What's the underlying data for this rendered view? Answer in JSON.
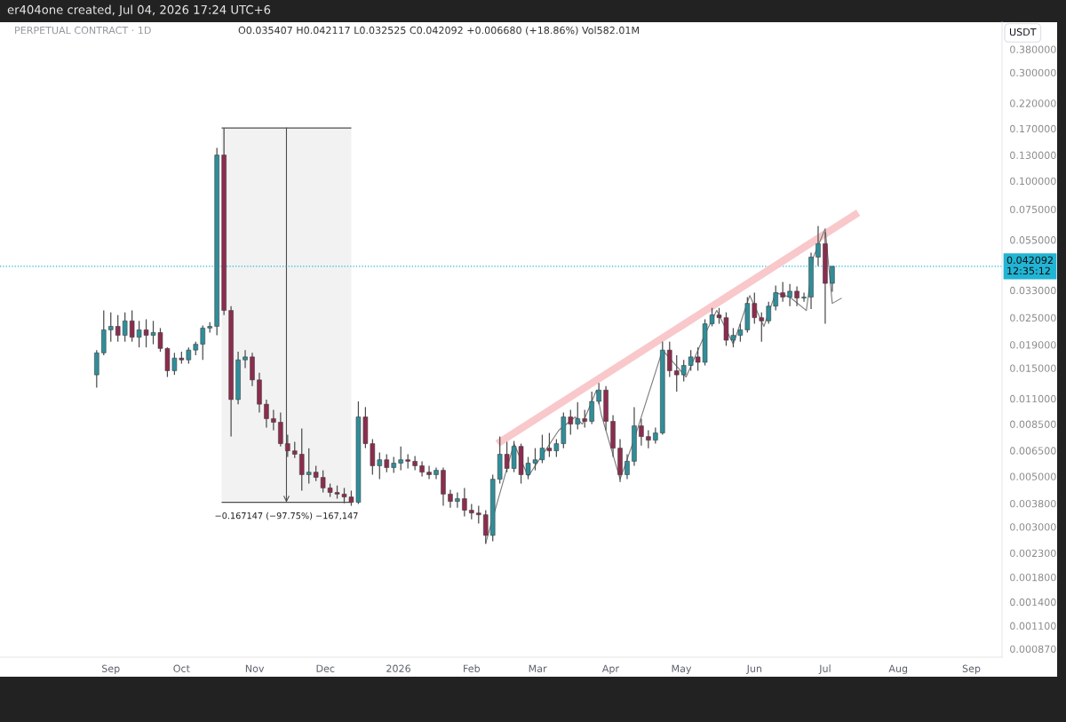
{
  "chart_data": {
    "type": "candlestick",
    "title": "PERPETUAL CONTRACT · 1D",
    "subtitle": "O0.035407 H0.042117 L0.032525 C0.042092 +0.006680 (+18.86%) Vol582.01M",
    "ylabel": "USDT",
    "annotations": [
      "er404one created, Jul 04, 2026 17:24 UTC+6"
    ],
    "x": [
      "2025-08-26",
      "2025-08-29",
      "2025-09-01",
      "2025-09-04",
      "2025-09-07",
      "2025-09-10",
      "2025-09-13",
      "2025-09-16",
      "2025-09-19",
      "2025-09-22",
      "2025-09-25",
      "2025-09-28",
      "2025-10-01",
      "2025-10-04",
      "2025-10-07",
      "2025-10-10",
      "2025-10-13",
      "2025-10-16",
      "2025-10-19",
      "2025-10-22",
      "2025-10-25",
      "2025-10-28",
      "2025-10-31",
      "2025-11-03",
      "2025-11-06",
      "2025-11-09",
      "2025-11-12",
      "2025-11-15",
      "2025-11-18",
      "2025-11-21",
      "2025-11-24",
      "2025-11-27",
      "2025-11-30",
      "2025-12-03",
      "2025-12-06",
      "2025-12-09",
      "2025-12-12",
      "2025-12-15",
      "2025-12-18",
      "2025-12-21",
      "2025-12-24",
      "2025-12-27",
      "2025-12-30",
      "2026-01-02",
      "2026-01-05",
      "2026-01-08",
      "2026-01-11",
      "2026-01-14",
      "2026-01-17",
      "2026-01-20",
      "2026-01-23",
      "2026-01-26",
      "2026-01-29",
      "2026-02-01",
      "2026-02-04",
      "2026-02-07",
      "2026-02-10",
      "2026-02-13",
      "2026-02-16",
      "2026-02-19",
      "2026-02-22",
      "2026-02-25",
      "2026-02-28",
      "2026-03-03",
      "2026-03-06",
      "2026-03-09",
      "2026-03-12",
      "2026-03-15",
      "2026-03-18",
      "2026-03-21",
      "2026-03-24",
      "2026-03-27",
      "2026-03-30",
      "2026-04-02",
      "2026-04-05",
      "2026-04-08",
      "2026-04-11",
      "2026-04-14",
      "2026-04-17",
      "2026-04-20",
      "2026-04-23",
      "2026-04-26",
      "2026-04-29",
      "2026-05-02",
      "2026-05-05",
      "2026-05-08",
      "2026-05-11",
      "2026-05-14",
      "2026-05-17",
      "2026-05-20",
      "2026-05-23",
      "2026-05-26",
      "2026-05-29",
      "2026-06-01",
      "2026-06-04",
      "2026-06-07",
      "2026-06-10",
      "2026-06-13",
      "2026-06-16",
      "2026-06-19",
      "2026-06-22",
      "2026-06-25",
      "2026-06-28",
      "2026-07-01",
      "2026-07-04"
    ],
    "ohlc": [
      [
        0.014,
        0.018,
        0.0123,
        0.0175
      ],
      [
        0.0175,
        0.0269,
        0.0171,
        0.0221
      ],
      [
        0.0221,
        0.0264,
        0.0196,
        0.0229
      ],
      [
        0.0229,
        0.0257,
        0.0196,
        0.0209
      ],
      [
        0.0209,
        0.0264,
        0.0196,
        0.0242
      ],
      [
        0.0242,
        0.0269,
        0.0196,
        0.0205
      ],
      [
        0.0205,
        0.0242,
        0.0185,
        0.0221
      ],
      [
        0.0221,
        0.0246,
        0.0185,
        0.0209
      ],
      [
        0.0209,
        0.0242,
        0.0191,
        0.0215
      ],
      [
        0.0215,
        0.0225,
        0.0177,
        0.0183
      ],
      [
        0.0183,
        0.0185,
        0.0137,
        0.0146
      ],
      [
        0.0146,
        0.0175,
        0.014,
        0.0166
      ],
      [
        0.0166,
        0.0177,
        0.0157,
        0.0163
      ],
      [
        0.0163,
        0.0185,
        0.0157,
        0.018
      ],
      [
        0.018,
        0.0196,
        0.0171,
        0.0191
      ],
      [
        0.0191,
        0.0231,
        0.0163,
        0.0225
      ],
      [
        0.0225,
        0.0239,
        0.0215,
        0.0229
      ],
      [
        0.0229,
        0.14,
        0.0209,
        0.13
      ],
      [
        0.13,
        0.17099,
        0.0257,
        0.0269
      ],
      [
        0.0269,
        0.0281,
        0.00749,
        0.0109
      ],
      [
        0.0109,
        0.0177,
        0.0104,
        0.0163
      ],
      [
        0.0163,
        0.018,
        0.015,
        0.0168
      ],
      [
        0.0168,
        0.0175,
        0.0125,
        0.0133
      ],
      [
        0.0133,
        0.0143,
        0.00956,
        0.0104
      ],
      [
        0.0104,
        0.0109,
        0.0082,
        0.00898
      ],
      [
        0.00898,
        0.00982,
        0.00798,
        0.00866
      ],
      [
        0.00866,
        0.00956,
        0.00678,
        0.00697
      ],
      [
        0.00697,
        0.00763,
        0.00609,
        0.00648
      ],
      [
        0.00648,
        0.0071,
        0.00603,
        0.00626
      ],
      [
        0.00626,
        0.00812,
        0.00433,
        0.00509
      ],
      [
        0.00509,
        0.00666,
        0.00465,
        0.00522
      ],
      [
        0.00522,
        0.00557,
        0.00477,
        0.00495
      ],
      [
        0.00495,
        0.00532,
        0.00425,
        0.00445
      ],
      [
        0.00445,
        0.00465,
        0.00406,
        0.00425
      ],
      [
        0.00425,
        0.00456,
        0.00399,
        0.00418
      ],
      [
        0.00418,
        0.00445,
        0.00381,
        0.00406
      ],
      [
        0.00406,
        0.00433,
        0.00371,
        0.003844
      ],
      [
        0.003844,
        0.0107,
        0.00378,
        0.00914
      ],
      [
        0.00914,
        0.0101,
        0.00666,
        0.00697
      ],
      [
        0.00697,
        0.00729,
        0.00509,
        0.00557
      ],
      [
        0.00557,
        0.00637,
        0.00486,
        0.00592
      ],
      [
        0.00592,
        0.00626,
        0.00522,
        0.00547
      ],
      [
        0.00547,
        0.00609,
        0.00518,
        0.00572
      ],
      [
        0.00572,
        0.00678,
        0.00532,
        0.00592
      ],
      [
        0.00592,
        0.00626,
        0.00542,
        0.00583
      ],
      [
        0.00583,
        0.00615,
        0.00532,
        0.00557
      ],
      [
        0.00557,
        0.00583,
        0.005,
        0.00522
      ],
      [
        0.00522,
        0.00557,
        0.00486,
        0.00509
      ],
      [
        0.00509,
        0.00547,
        0.00486,
        0.00532
      ],
      [
        0.00532,
        0.00547,
        0.00371,
        0.00418
      ],
      [
        0.00418,
        0.00437,
        0.00364,
        0.00388
      ],
      [
        0.00388,
        0.00425,
        0.00364,
        0.00399
      ],
      [
        0.00399,
        0.00445,
        0.00333,
        0.00355
      ],
      [
        0.00355,
        0.00378,
        0.00324,
        0.00345
      ],
      [
        0.00345,
        0.00371,
        0.0031,
        0.00339
      ],
      [
        0.00339,
        0.00355,
        0.00252,
        0.00275
      ],
      [
        0.00275,
        0.00509,
        0.00259,
        0.00486
      ],
      [
        0.00486,
        0.00749,
        0.00465,
        0.00626
      ],
      [
        0.00626,
        0.0071,
        0.00522,
        0.00542
      ],
      [
        0.00542,
        0.00716,
        0.00522,
        0.00678
      ],
      [
        0.00678,
        0.00697,
        0.00465,
        0.00509
      ],
      [
        0.00509,
        0.00609,
        0.00486,
        0.00572
      ],
      [
        0.00572,
        0.00666,
        0.00532,
        0.00592
      ],
      [
        0.00592,
        0.00763,
        0.00572,
        0.00666
      ],
      [
        0.00666,
        0.00777,
        0.00609,
        0.00648
      ],
      [
        0.00648,
        0.00729,
        0.00609,
        0.00697
      ],
      [
        0.00697,
        0.00956,
        0.00666,
        0.00914
      ],
      [
        0.00914,
        0.00982,
        0.00763,
        0.0085
      ],
      [
        0.0085,
        0.0106,
        0.00806,
        0.00898
      ],
      [
        0.00898,
        0.00982,
        0.0082,
        0.00874
      ],
      [
        0.00874,
        0.0118,
        0.0085,
        0.0107
      ],
      [
        0.0107,
        0.0129,
        0.0104,
        0.012
      ],
      [
        0.012,
        0.0125,
        0.00798,
        0.00874
      ],
      [
        0.00874,
        0.0093,
        0.00609,
        0.00666
      ],
      [
        0.00666,
        0.00729,
        0.00473,
        0.00509
      ],
      [
        0.00509,
        0.00626,
        0.00486,
        0.00583
      ],
      [
        0.00583,
        0.0101,
        0.00557,
        0.00835
      ],
      [
        0.00835,
        0.00898,
        0.00684,
        0.00749
      ],
      [
        0.00749,
        0.00798,
        0.00666,
        0.00722
      ],
      [
        0.00722,
        0.0082,
        0.00697,
        0.00777
      ],
      [
        0.00777,
        0.0196,
        0.00763,
        0.018
      ],
      [
        0.018,
        0.0196,
        0.0137,
        0.0146
      ],
      [
        0.0146,
        0.0171,
        0.0118,
        0.014
      ],
      [
        0.014,
        0.0163,
        0.0131,
        0.0154
      ],
      [
        0.0154,
        0.018,
        0.0146,
        0.0168
      ],
      [
        0.0168,
        0.0185,
        0.0146,
        0.0159
      ],
      [
        0.0159,
        0.0246,
        0.0154,
        0.0235
      ],
      [
        0.0235,
        0.0276,
        0.0229,
        0.0257
      ],
      [
        0.0257,
        0.0276,
        0.0235,
        0.025
      ],
      [
        0.025,
        0.0264,
        0.0188,
        0.0199
      ],
      [
        0.0199,
        0.0225,
        0.0185,
        0.0209
      ],
      [
        0.0209,
        0.0235,
        0.0196,
        0.0221
      ],
      [
        0.0221,
        0.0308,
        0.0215,
        0.0289
      ],
      [
        0.0289,
        0.0322,
        0.0235,
        0.025
      ],
      [
        0.025,
        0.0264,
        0.0196,
        0.0242
      ],
      [
        0.0242,
        0.0294,
        0.0235,
        0.0281
      ],
      [
        0.0281,
        0.0346,
        0.0269,
        0.0322
      ],
      [
        0.0322,
        0.0359,
        0.0294,
        0.0308
      ],
      [
        0.0308,
        0.0352,
        0.0281,
        0.0327
      ],
      [
        0.0327,
        0.0343,
        0.0281,
        0.0305
      ],
      [
        0.0305,
        0.0322,
        0.0294,
        0.0308
      ],
      [
        0.0308,
        0.0483,
        0.0273,
        0.0462
      ],
      [
        0.0462,
        0.0633,
        0.0422,
        0.0529
      ],
      [
        0.0529,
        0.0594,
        0.0235,
        0.0354
      ],
      [
        0.035407,
        0.042117,
        0.032525,
        0.042092
      ]
    ],
    "series": [
      {
        "type": "line",
        "color": "#f9c8cb",
        "x": [
          "2026-02-12",
          "2026-07-15"
        ],
        "values": [
          0.00697,
          0.0725
        ]
      },
      {
        "type": "line",
        "color": "#7a7a7a",
        "x": [
          "2026-02-07",
          "2026-02-19",
          "2026-02-25",
          "2026-03-10",
          "2026-03-17",
          "2026-03-20",
          "2026-03-26",
          "2026-03-28",
          "2026-04-05",
          "2026-04-11",
          "2026-04-23",
          "2026-05-03",
          "2026-05-11",
          "2026-05-16",
          "2026-05-23",
          "2026-05-30",
          "2026-06-05",
          "2026-06-10",
          "2026-06-16",
          "2026-06-23",
          "2026-06-26",
          "2026-07-01",
          "2026-07-04",
          "2026-07-08"
        ],
        "values": [
          0.00254,
          0.00697,
          0.005,
          0.00798,
          0.00914,
          0.0085,
          0.012,
          0.00939,
          0.00486,
          0.00729,
          0.018,
          0.0137,
          0.0211,
          0.0269,
          0.0191,
          0.0313,
          0.0229,
          0.0322,
          0.0308,
          0.0269,
          0.0462,
          0.0616,
          0.0289,
          0.0305
        ]
      }
    ],
    "bands": [
      {
        "axis": "x",
        "from": "2025-10-18",
        "to": "2025-12-12",
        "label": "−0.167147 (−97.75%) −167,147",
        "color": "#f2f2f2"
      }
    ],
    "ref_lines": [
      {
        "axis": "y",
        "value": 0.042092,
        "label": "0.042092\n12:35:12",
        "color": "#22b4d4",
        "line_style": "dotted"
      }
    ],
    "xlim": [
      "2025-07-16",
      "2026-09-14"
    ],
    "xticks": [
      {
        "value": "2025-09-01",
        "label": "Sep"
      },
      {
        "value": "2025-10-01",
        "label": "Oct"
      },
      {
        "value": "2025-11-01",
        "label": "Nov"
      },
      {
        "value": "2025-12-01",
        "label": "Dec"
      },
      {
        "value": "2026-01-01",
        "label": "2026"
      },
      {
        "value": "2026-02-01",
        "label": "Feb"
      },
      {
        "value": "2026-03-01",
        "label": "Mar"
      },
      {
        "value": "2026-04-01",
        "label": "Apr"
      },
      {
        "value": "2026-05-01",
        "label": "May"
      },
      {
        "value": "2026-06-01",
        "label": "Jun"
      },
      {
        "value": "2026-07-01",
        "label": "Jul"
      },
      {
        "value": "2026-08-01",
        "label": "Aug"
      },
      {
        "value": "2026-09-01",
        "label": "Sep"
      }
    ],
    "log": true,
    "ylim": [
      0.0008,
      0.5
    ],
    "yticks": [
      {
        "value": 0.38,
        "label": "0.380000"
      },
      {
        "value": 0.3,
        "label": "0.300000"
      },
      {
        "value": 0.22,
        "label": "0.220000"
      },
      {
        "value": 0.17,
        "label": "0.170000"
      },
      {
        "value": 0.13,
        "label": "0.130000"
      },
      {
        "value": 0.1,
        "label": "0.100000"
      },
      {
        "value": 0.075,
        "label": "0.075000"
      },
      {
        "value": 0.055,
        "label": "0.055000"
      },
      {
        "value": 0.033,
        "label": "0.033000"
      },
      {
        "value": 0.025,
        "label": "0.025000"
      },
      {
        "value": 0.019,
        "label": "0.019000"
      },
      {
        "value": 0.015,
        "label": "0.015000"
      },
      {
        "value": 0.011,
        "label": "0.011000"
      },
      {
        "value": 0.0085,
        "label": "0.008500"
      },
      {
        "value": 0.0065,
        "label": "0.006500"
      },
      {
        "value": 0.005,
        "label": "0.005000"
      },
      {
        "value": 0.0038,
        "label": "0.003800"
      },
      {
        "value": 0.003,
        "label": "0.003000"
      },
      {
        "value": 0.0023,
        "label": "0.002300"
      },
      {
        "value": 0.0018,
        "label": "0.001800"
      },
      {
        "value": 0.0014,
        "label": "0.001400"
      },
      {
        "value": 0.0011,
        "label": "0.001100"
      },
      {
        "value": 0.00087,
        "label": "0.000870"
      }
    ]
  }
}
